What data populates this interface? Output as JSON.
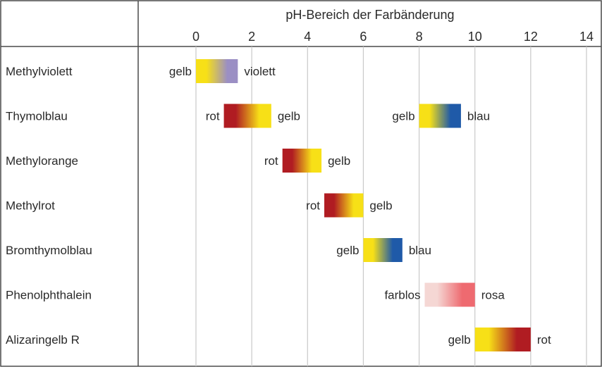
{
  "chart_data": {
    "type": "range-bar",
    "title": "pH-Bereich der Farbänderung",
    "xlabel": "pH-Bereich der Farbänderung",
    "xlim": [
      -2.1,
      14.2
    ],
    "xticks": [
      0,
      2,
      4,
      6,
      8,
      10,
      12,
      14
    ],
    "grid": true,
    "colors": {
      "gelb": "#f7e017",
      "violett": "#9b8fc4",
      "rot": "#b01c22",
      "blau": "#1f5aa8",
      "farblos": "#f5d7d4",
      "rosa": "#ee6a70"
    },
    "indicators": [
      {
        "name": "Methylviolett",
        "ranges": [
          {
            "from": 0.0,
            "to": 1.5,
            "from_label": "gelb",
            "to_label": "violett",
            "from_color": "#f7e017",
            "to_color": "#9b8fc4"
          }
        ]
      },
      {
        "name": "Thymolblau",
        "ranges": [
          {
            "from": 1.0,
            "to": 2.7,
            "from_label": "rot",
            "to_label": "gelb",
            "from_color": "#b01c22",
            "to_color": "#f7e017"
          },
          {
            "from": 8.0,
            "to": 9.5,
            "from_label": "gelb",
            "to_label": "blau",
            "from_color": "#f7e017",
            "to_color": "#1f5aa8"
          }
        ]
      },
      {
        "name": "Methylorange",
        "ranges": [
          {
            "from": 3.1,
            "to": 4.5,
            "from_label": "rot",
            "to_label": "gelb",
            "from_color": "#b01c22",
            "to_color": "#f7e017"
          }
        ]
      },
      {
        "name": "Methylrot",
        "ranges": [
          {
            "from": 4.6,
            "to": 6.0,
            "from_label": "rot",
            "to_label": "gelb",
            "from_color": "#b01c22",
            "to_color": "#f7e017"
          }
        ]
      },
      {
        "name": "Bromthymolblau",
        "ranges": [
          {
            "from": 6.0,
            "to": 7.4,
            "from_label": "gelb",
            "to_label": "blau",
            "from_color": "#f7e017",
            "to_color": "#1f5aa8"
          }
        ]
      },
      {
        "name": "Phenolphthalein",
        "ranges": [
          {
            "from": 8.2,
            "to": 10.0,
            "from_label": "farblos",
            "to_label": "rosa",
            "from_color": "#f5d7d4",
            "to_color": "#ee6a70"
          }
        ]
      },
      {
        "name": "Alizaringelb R",
        "ranges": [
          {
            "from": 10.0,
            "to": 12.0,
            "from_label": "gelb",
            "to_label": "rot",
            "from_color": "#f7e017",
            "to_color": "#b01c22"
          }
        ]
      }
    ]
  }
}
